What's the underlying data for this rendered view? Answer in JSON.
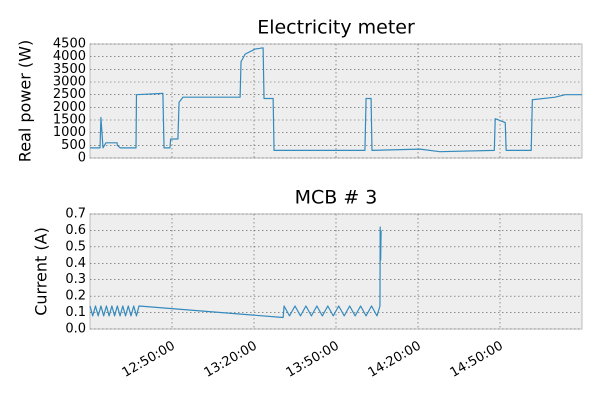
{
  "chart_data": [
    {
      "type": "line",
      "title": "Electricity meter",
      "ylabel": "Real power (W)",
      "xlim": [
        "12:20:00",
        "15:20:00"
      ],
      "ylim": [
        0,
        4500
      ],
      "yticks": [
        0,
        500,
        1000,
        1500,
        2000,
        2500,
        3000,
        3500,
        4000,
        4500
      ],
      "grid": true,
      "x": [
        "12:20:00",
        "12:23:40",
        "12:24:00",
        "12:24:45",
        "12:25:50",
        "12:29:55",
        "12:30:00",
        "12:31:00",
        "12:36:50",
        "12:37:00",
        "12:46:40",
        "12:47:05",
        "12:49:15",
        "12:49:30",
        "12:52:10",
        "12:52:35",
        "12:54:00",
        "13:14:55",
        "13:15:15",
        "13:16:45",
        "13:20:25",
        "13:23:20",
        "13:23:40",
        "13:27:00",
        "13:27:20",
        "14:00:35",
        "14:01:00",
        "14:02:50",
        "14:03:10",
        "14:20:45",
        "14:28:00",
        "14:47:55",
        "14:48:15",
        "14:51:55",
        "14:52:15",
        "15:01:25",
        "15:01:50",
        "15:10:10",
        "15:13:50",
        "15:20:00"
      ],
      "series": [
        {
          "color": "#348abd",
          "values": [
            400,
            400,
            1600,
            400,
            600,
            600,
            500,
            400,
            400,
            2500,
            2550,
            400,
            400,
            750,
            750,
            2200,
            2400,
            2400,
            3800,
            4100,
            4300,
            4350,
            2350,
            2350,
            300,
            300,
            2350,
            2350,
            300,
            350,
            250,
            300,
            1550,
            1400,
            300,
            300,
            2300,
            2400,
            2500,
            2500
          ]
        }
      ]
    },
    {
      "type": "line",
      "title": "MCB # 3",
      "ylabel": "Current (A)",
      "xlim": [
        "12:20:00",
        "15:20:00"
      ],
      "ylim": [
        0,
        0.7
      ],
      "xticks": [
        "12:50:00",
        "13:20:00",
        "13:50:00",
        "14:20:00",
        "14:50:00"
      ],
      "yticks": [
        {
          "value": 0,
          "label": "0.0"
        },
        0.1,
        0.2,
        0.3,
        0.4,
        0.5,
        0.6,
        0.7
      ],
      "grid": true,
      "x": [
        "12:20:00",
        "12:21:00",
        "12:22:00",
        "12:23:00",
        "12:24:00",
        "12:25:00",
        "12:26:00",
        "12:27:00",
        "12:28:00",
        "12:29:00",
        "12:30:00",
        "12:31:00",
        "12:32:00",
        "12:33:00",
        "12:34:00",
        "12:35:00",
        "12:36:00",
        "12:37:00",
        "12:37:55",
        "13:30:40",
        "13:31:00",
        "13:33:00",
        "13:35:00",
        "13:37:00",
        "13:39:00",
        "13:41:00",
        "13:43:00",
        "13:45:00",
        "13:47:00",
        "13:49:00",
        "13:51:00",
        "13:53:00",
        "13:55:00",
        "13:57:00",
        "13:59:00",
        "14:01:00",
        "14:03:00",
        "14:05:00",
        "14:06:05",
        "14:06:10",
        "14:06:20",
        "14:06:30"
      ],
      "series": [
        {
          "color": "#348abd",
          "values": [
            0.14,
            0.08,
            0.14,
            0.08,
            0.14,
            0.08,
            0.14,
            0.08,
            0.14,
            0.08,
            0.14,
            0.08,
            0.14,
            0.08,
            0.14,
            0.08,
            0.14,
            0.08,
            0.14,
            0.07,
            0.14,
            0.08,
            0.14,
            0.08,
            0.14,
            0.08,
            0.14,
            0.08,
            0.14,
            0.08,
            0.14,
            0.08,
            0.14,
            0.08,
            0.14,
            0.08,
            0.14,
            0.08,
            0.14,
            0.62,
            0.42,
            0.6
          ]
        }
      ]
    }
  ]
}
